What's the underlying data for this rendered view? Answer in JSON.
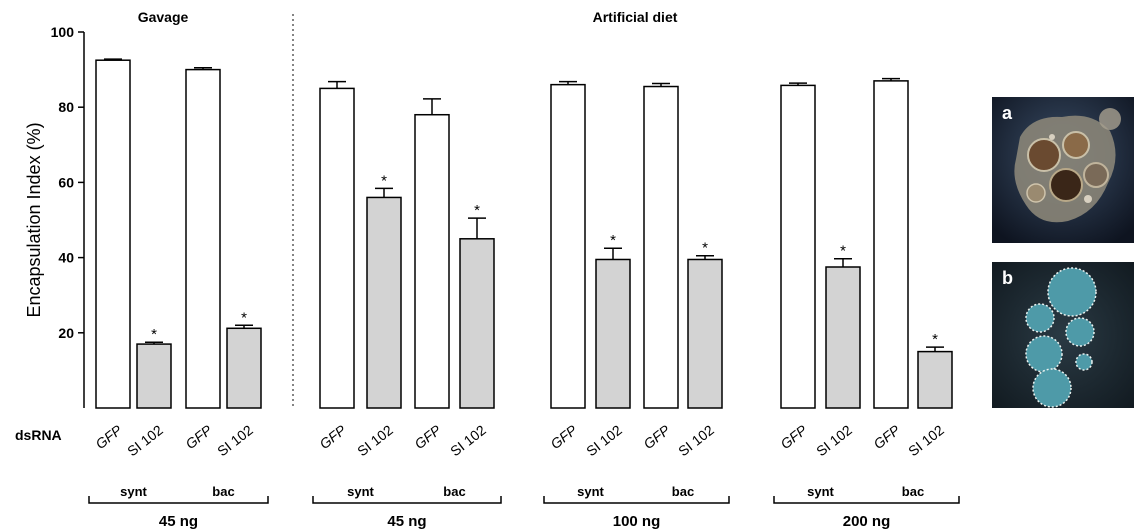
{
  "chart_data": {
    "type": "bar",
    "ylabel": "Encapsulation Index (%)",
    "ylim": [
      0,
      100
    ],
    "yticks": [
      20,
      40,
      60,
      80,
      100
    ],
    "section_titles": [
      "Gavage",
      "Artificial diet"
    ],
    "row_label": "dsRNA",
    "bars": [
      {
        "label": "GFP",
        "value": 92.5,
        "error": 0.3,
        "significant": false
      },
      {
        "label": "SI 102",
        "value": 17.0,
        "error": 0.5,
        "significant": true
      },
      {
        "label": "GFP",
        "value": 90.0,
        "error": 0.5,
        "significant": false
      },
      {
        "label": "SI 102",
        "value": 21.2,
        "error": 0.8,
        "significant": true
      },
      {
        "label": "GFP",
        "value": 85.0,
        "error": 1.8,
        "significant": false
      },
      {
        "label": "SI 102",
        "value": 56.0,
        "error": 2.4,
        "significant": true
      },
      {
        "label": "GFP",
        "value": 78.0,
        "error": 4.2,
        "significant": false
      },
      {
        "label": "SI 102",
        "value": 45.0,
        "error": 5.5,
        "significant": true
      },
      {
        "label": "GFP",
        "value": 86.0,
        "error": 0.8,
        "significant": false
      },
      {
        "label": "SI 102",
        "value": 39.5,
        "error": 3.0,
        "significant": true
      },
      {
        "label": "GFP",
        "value": 85.5,
        "error": 0.8,
        "significant": false
      },
      {
        "label": "SI 102",
        "value": 39.5,
        "error": 1.0,
        "significant": true
      },
      {
        "label": "GFP",
        "value": 85.8,
        "error": 0.6,
        "significant": false
      },
      {
        "label": "SI 102",
        "value": 37.5,
        "error": 2.2,
        "significant": true
      },
      {
        "label": "GFP",
        "value": 87.0,
        "error": 0.6,
        "significant": false
      },
      {
        "label": "SI 102",
        "value": 15.0,
        "error": 1.2,
        "significant": true
      }
    ],
    "significance_marker": "*",
    "groups": [
      {
        "sub": [
          "synt",
          "bac"
        ],
        "dose": "45 ng"
      },
      {
        "sub": [
          "synt",
          "bac"
        ],
        "dose": "45 ng"
      },
      {
        "sub": [
          "synt",
          "bac"
        ],
        "dose": "100 ng"
      },
      {
        "sub": [
          "synt",
          "bac"
        ],
        "dose": "200 ng"
      }
    ],
    "colors": {
      "control_fill": "#ffffff",
      "treatment_fill": "#d3d3d3",
      "stroke": "#000000"
    }
  },
  "photos": [
    {
      "letter": "a"
    },
    {
      "letter": "b"
    }
  ]
}
